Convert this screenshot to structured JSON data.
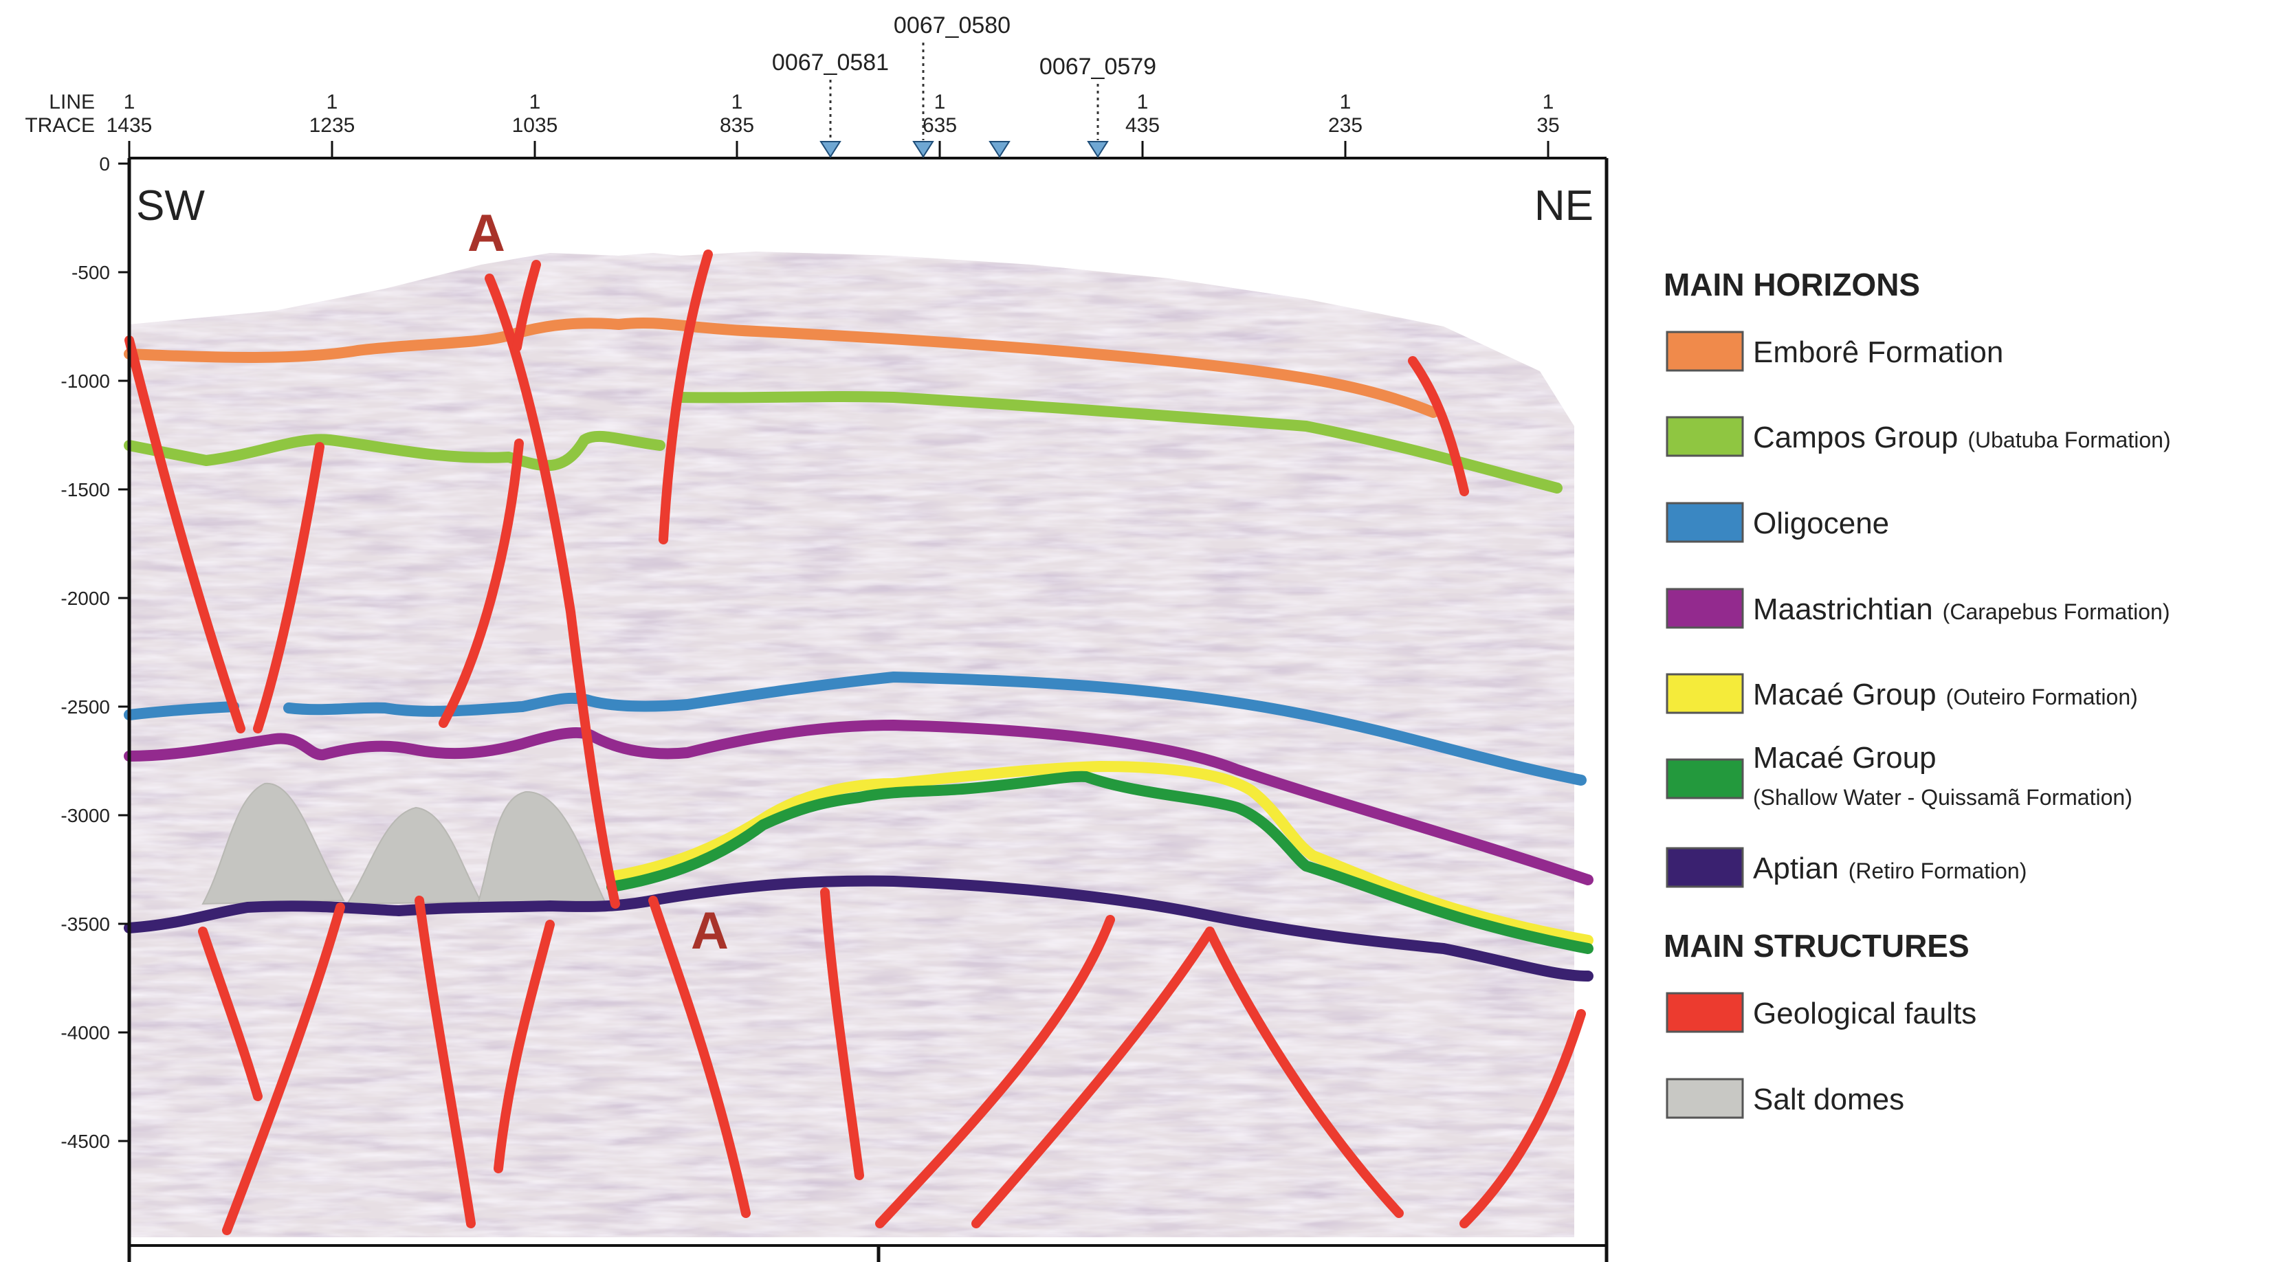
{
  "header": {
    "line_label": "LINE",
    "trace_label": "TRACE",
    "line_values": [
      "1",
      "1",
      "1",
      "1",
      "1",
      "1",
      "1",
      "1"
    ],
    "trace_values": [
      "1435",
      "1235",
      "1035",
      "835",
      "635",
      "435",
      "235",
      "35"
    ]
  },
  "wells": [
    {
      "name": "0067_0581"
    },
    {
      "name": "0067_0580"
    },
    {
      "name": "0067_0579"
    }
  ],
  "depth_axis": {
    "ticks": [
      "0",
      "-500",
      "-1000",
      "-1500",
      "-2000",
      "-2500",
      "-3000",
      "-3500",
      "-4000",
      "-4500"
    ]
  },
  "section": {
    "left_label": "SW",
    "right_label": "NE",
    "fault_marker_top": "A",
    "fault_marker_bottom": "A"
  },
  "legend": {
    "horizons_title": "MAIN HORIZONS",
    "structures_title": "MAIN STRUCTURES",
    "horizons": [
      {
        "label": "Emborê Formation",
        "sub": "",
        "color": "#f08a4b"
      },
      {
        "label": "Campos Group",
        "sub": "(Ubatuba Formation)",
        "color": "#8fc641"
      },
      {
        "label": "Oligocene",
        "sub": "",
        "color": "#3a87c2"
      },
      {
        "label": "Maastrichtian",
        "sub": "(Carapebus Formation)",
        "color": "#932a8e"
      },
      {
        "label": "Macaé Group",
        "sub": "(Outeiro Formation)",
        "color": "#f5eb3a"
      },
      {
        "label": "Macaé Group",
        "sub": "(Shallow Water - Quissamã Formation)",
        "color": "#23993d"
      },
      {
        "label": "Aptian",
        "sub": "(Retiro Formation)",
        "color": "#3a2170"
      }
    ],
    "structures": [
      {
        "label": "Geological faults",
        "color": "#ec3b2f"
      },
      {
        "label": "Salt domes",
        "color": "#c8c8c4"
      }
    ]
  }
}
